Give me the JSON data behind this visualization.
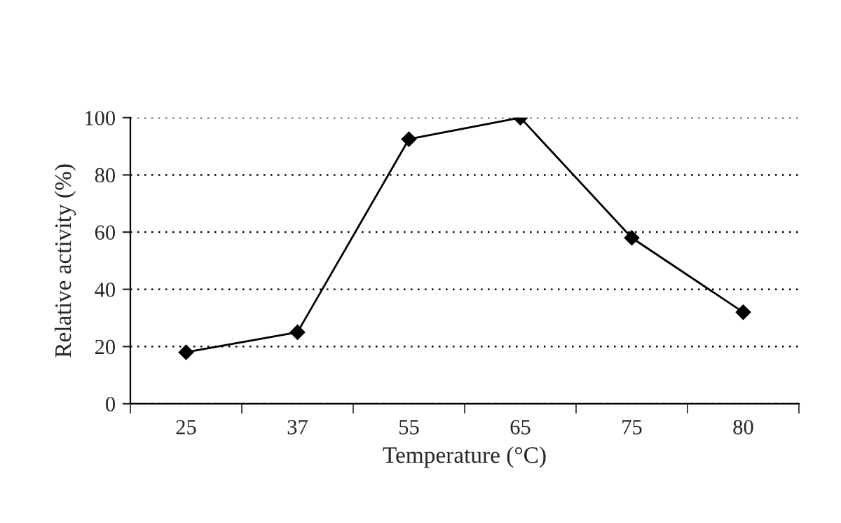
{
  "chart_data": {
    "type": "line",
    "xlabel": "Temperature (°C)",
    "ylabel": "Relative activity (%)",
    "categories": [
      "25",
      "37",
      "55",
      "65",
      "75",
      "80"
    ],
    "series": [
      {
        "color": "#000000",
        "values": [
          18,
          25,
          92.5,
          100,
          58,
          32
        ]
      }
    ],
    "ylim": [
      0,
      100
    ],
    "yticks": [
      0,
      20,
      40,
      60,
      80,
      100
    ],
    "grid": "y",
    "marker": "diamond",
    "line_style": "solid"
  }
}
